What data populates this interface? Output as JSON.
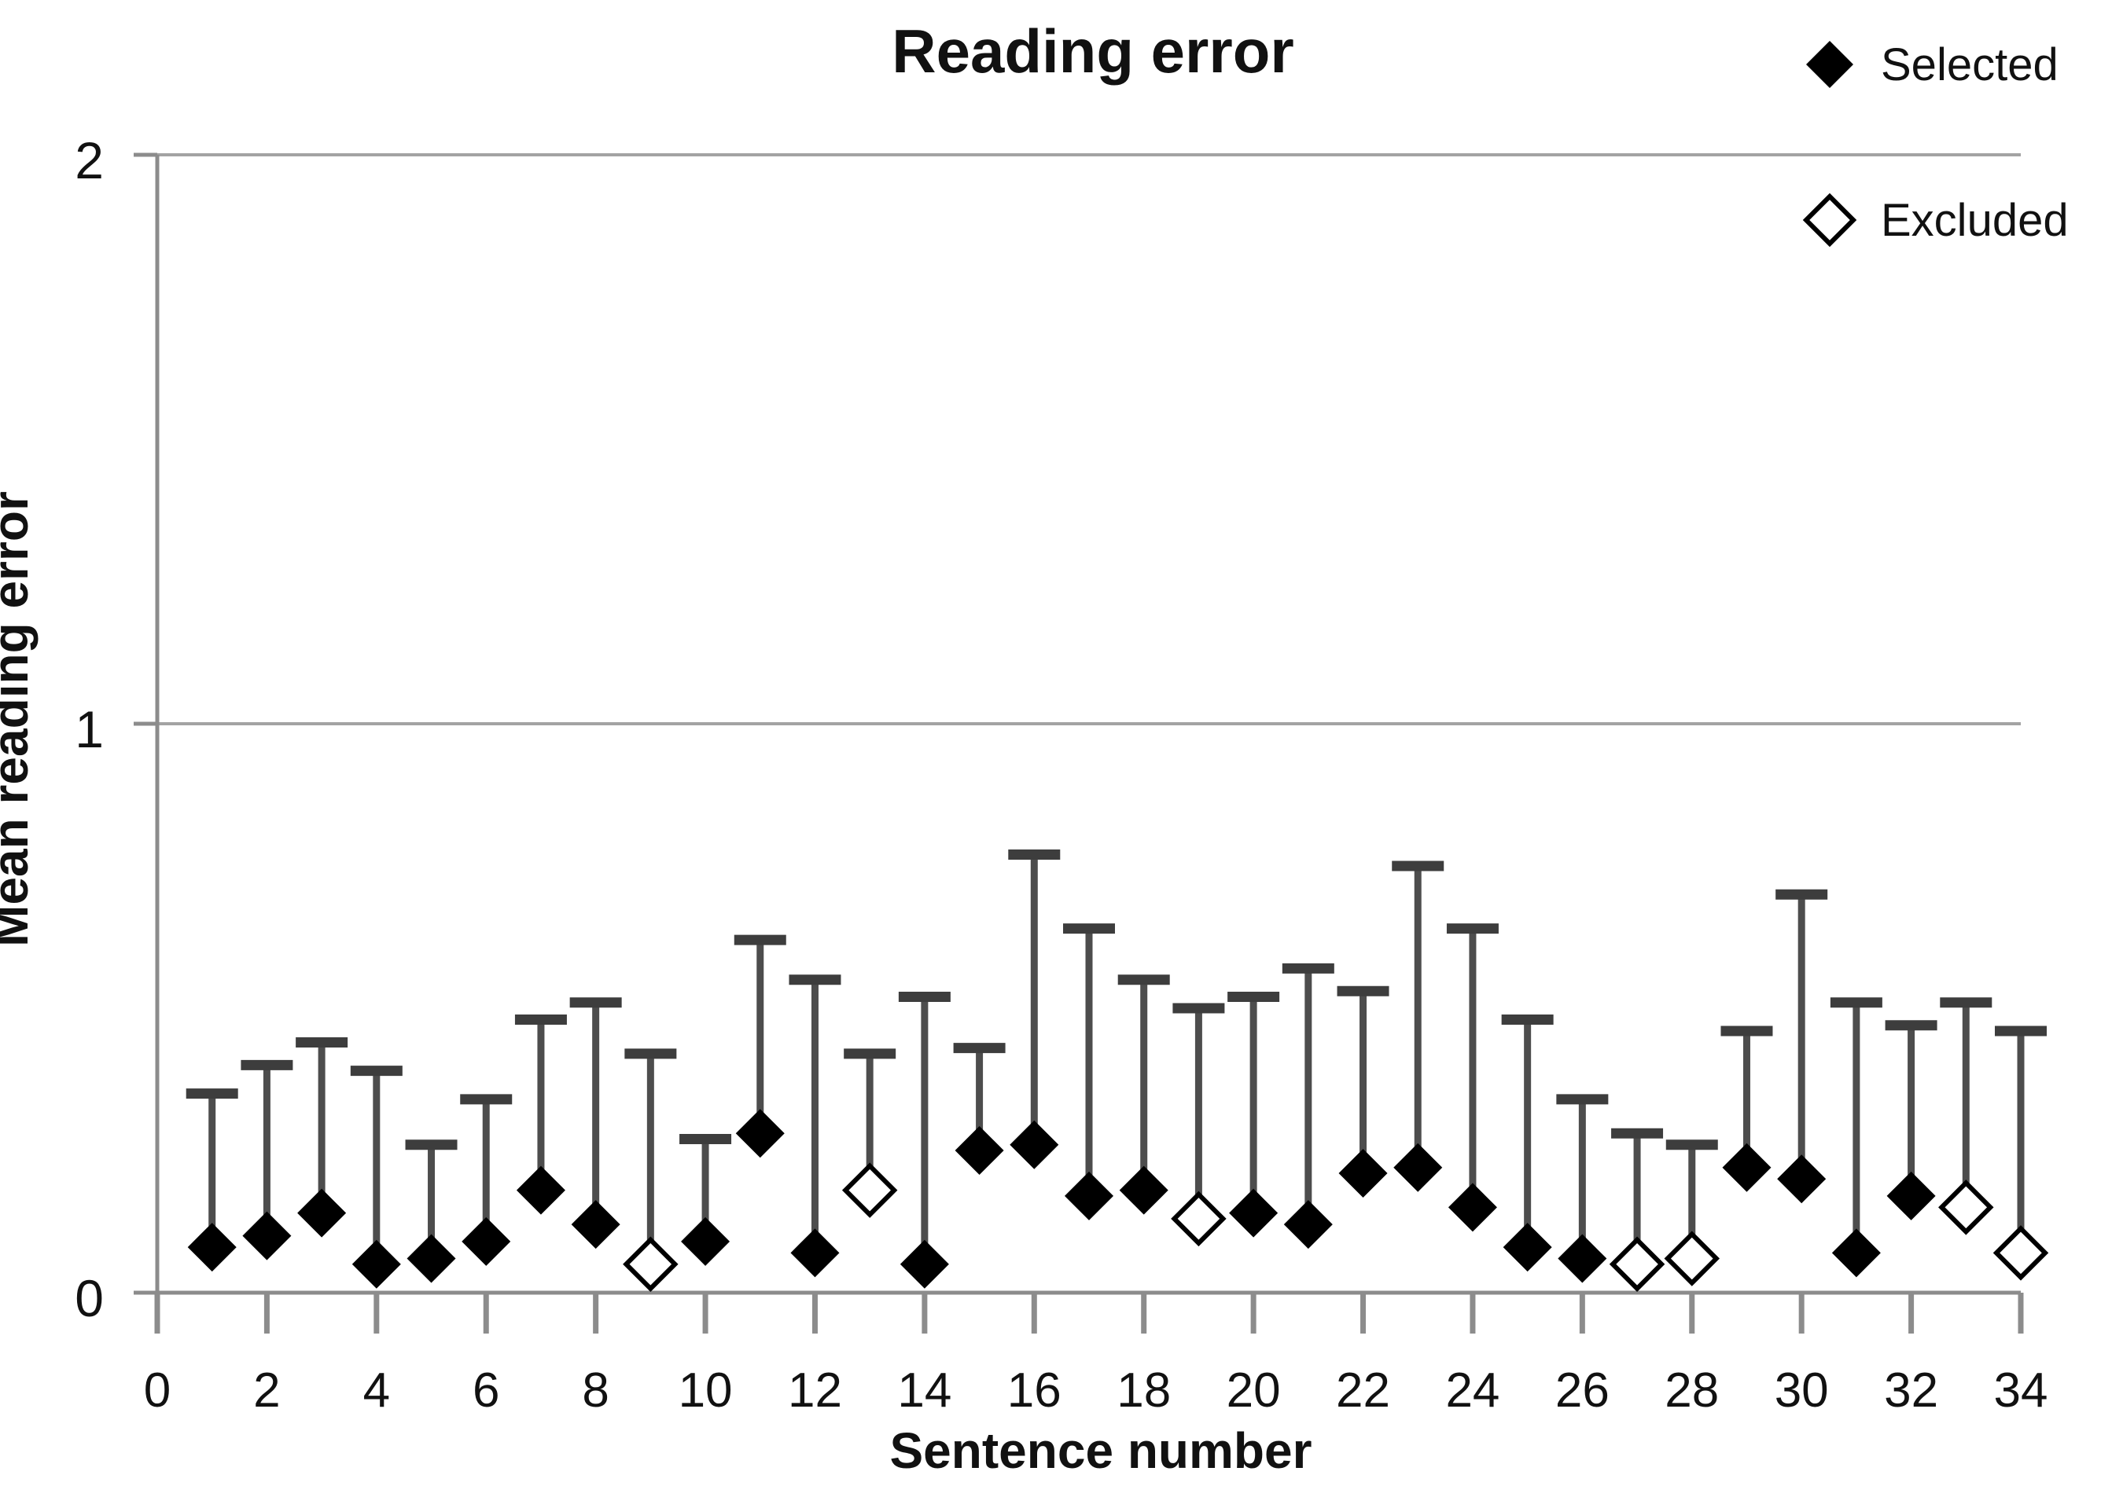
{
  "chart_data": {
    "type": "scatter",
    "title": "Reading error",
    "xlabel": "Sentence number",
    "ylabel": "Mean reading error",
    "xlim": [
      0,
      34
    ],
    "ylim": [
      0,
      2
    ],
    "x_tick_step": 2,
    "y_ticks": [
      0,
      1,
      2
    ],
    "grid": "horizontal",
    "legend_position": "top-right",
    "legend": [
      {
        "label": "Selected",
        "marker": "filled-diamond-icon"
      },
      {
        "label": "Excluded",
        "marker": "open-diamond-icon"
      }
    ],
    "error_bar": "upper-only",
    "points": [
      {
        "x": 1,
        "mean": 0.08,
        "upper": 0.35,
        "group": "Selected"
      },
      {
        "x": 2,
        "mean": 0.1,
        "upper": 0.4,
        "group": "Selected"
      },
      {
        "x": 3,
        "mean": 0.14,
        "upper": 0.44,
        "group": "Selected"
      },
      {
        "x": 4,
        "mean": 0.05,
        "upper": 0.39,
        "group": "Selected"
      },
      {
        "x": 5,
        "mean": 0.06,
        "upper": 0.26,
        "group": "Selected"
      },
      {
        "x": 6,
        "mean": 0.09,
        "upper": 0.34,
        "group": "Selected"
      },
      {
        "x": 7,
        "mean": 0.18,
        "upper": 0.48,
        "group": "Selected"
      },
      {
        "x": 8,
        "mean": 0.12,
        "upper": 0.51,
        "group": "Selected"
      },
      {
        "x": 9,
        "mean": 0.05,
        "upper": 0.42,
        "group": "Excluded"
      },
      {
        "x": 10,
        "mean": 0.09,
        "upper": 0.27,
        "group": "Selected"
      },
      {
        "x": 11,
        "mean": 0.28,
        "upper": 0.62,
        "group": "Selected"
      },
      {
        "x": 12,
        "mean": 0.07,
        "upper": 0.55,
        "group": "Selected"
      },
      {
        "x": 13,
        "mean": 0.18,
        "upper": 0.42,
        "group": "Excluded"
      },
      {
        "x": 14,
        "mean": 0.05,
        "upper": 0.52,
        "group": "Selected"
      },
      {
        "x": 15,
        "mean": 0.25,
        "upper": 0.43,
        "group": "Selected"
      },
      {
        "x": 16,
        "mean": 0.26,
        "upper": 0.77,
        "group": "Selected"
      },
      {
        "x": 17,
        "mean": 0.17,
        "upper": 0.64,
        "group": "Selected"
      },
      {
        "x": 18,
        "mean": 0.18,
        "upper": 0.55,
        "group": "Selected"
      },
      {
        "x": 19,
        "mean": 0.13,
        "upper": 0.5,
        "group": "Excluded"
      },
      {
        "x": 20,
        "mean": 0.14,
        "upper": 0.52,
        "group": "Selected"
      },
      {
        "x": 21,
        "mean": 0.12,
        "upper": 0.57,
        "group": "Selected"
      },
      {
        "x": 22,
        "mean": 0.21,
        "upper": 0.53,
        "group": "Selected"
      },
      {
        "x": 23,
        "mean": 0.22,
        "upper": 0.75,
        "group": "Selected"
      },
      {
        "x": 24,
        "mean": 0.15,
        "upper": 0.64,
        "group": "Selected"
      },
      {
        "x": 25,
        "mean": 0.08,
        "upper": 0.48,
        "group": "Selected"
      },
      {
        "x": 26,
        "mean": 0.06,
        "upper": 0.34,
        "group": "Selected"
      },
      {
        "x": 27,
        "mean": 0.05,
        "upper": 0.28,
        "group": "Excluded"
      },
      {
        "x": 28,
        "mean": 0.06,
        "upper": 0.26,
        "group": "Excluded"
      },
      {
        "x": 29,
        "mean": 0.22,
        "upper": 0.46,
        "group": "Selected"
      },
      {
        "x": 30,
        "mean": 0.2,
        "upper": 0.7,
        "group": "Selected"
      },
      {
        "x": 31,
        "mean": 0.07,
        "upper": 0.51,
        "group": "Selected"
      },
      {
        "x": 32,
        "mean": 0.17,
        "upper": 0.47,
        "group": "Selected"
      },
      {
        "x": 33,
        "mean": 0.15,
        "upper": 0.51,
        "group": "Excluded"
      },
      {
        "x": 34,
        "mean": 0.07,
        "upper": 0.46,
        "group": "Excluded"
      }
    ],
    "colors": {
      "marker": "#000000",
      "open_marker_fill": "#ffffff",
      "stem": "#4d4d4d",
      "cap": "#3d3d3d",
      "grid": "#a3a3a3",
      "axis": "#8c8c8c",
      "text": "#111111"
    }
  }
}
